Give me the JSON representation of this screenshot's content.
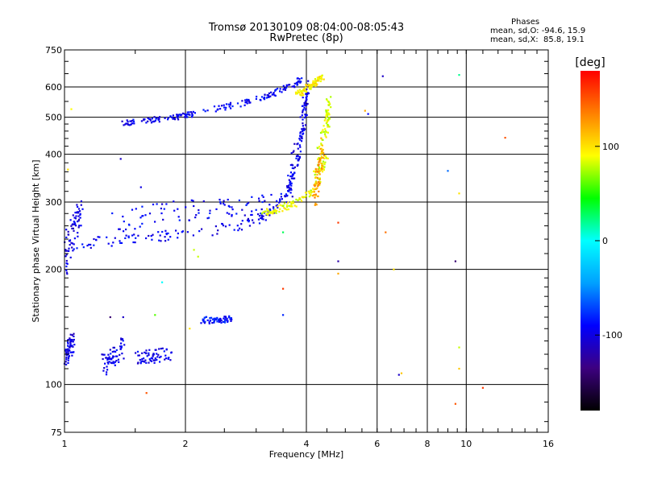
{
  "chart_data": {
    "type": "scatter",
    "title": "Tromsø 20130109 08:04:00-08:05:43",
    "subtitle": "RwPretec (8p)",
    "xlabel": "Frequency [MHz]",
    "ylabel": "Stationary phase Virtual Height [km]",
    "x_scale": "log",
    "y_scale": "log",
    "xlim": [
      1,
      16
    ],
    "ylim": [
      75,
      750
    ],
    "x_ticks": [
      1,
      2,
      4,
      6,
      8,
      10,
      16
    ],
    "y_ticks": [
      75,
      100,
      200,
      300,
      400,
      500,
      600,
      750
    ],
    "grid": true,
    "stats": {
      "heading": "Phases",
      "line_o": "mean, sd,O: -94.6, 15.9",
      "line_x": "mean, sd,X:  85.8, 19.1"
    },
    "colorbar": {
      "label": "[deg]",
      "range": [
        -180,
        180
      ],
      "ticks": [
        100,
        0,
        -100
      ],
      "colormap": [
        "#000000",
        "#3d0080",
        "#0000ff",
        "#00a0ff",
        "#00ffff",
        "#00ff00",
        "#ffff00",
        "#ff8000",
        "#ff0000"
      ]
    },
    "series": [
      {
        "description": "O-mode trace",
        "segments": [
          {
            "f": [
              1.0,
              1.2,
              1.5,
              2.0,
              2.5,
              3.0,
              3.3,
              3.6,
              3.8,
              3.95
            ],
            "h": [
              225,
              235,
              240,
              248,
              256,
              268,
              285,
              320,
              380,
              480
            ],
            "phase": -95,
            "jitter_h": 8
          },
          {
            "f": [
              1.0,
              1.05,
              1.1
            ],
            "h": [
              215,
              250,
              285
            ],
            "phase": -100,
            "jitter_h": 25
          },
          {
            "f": [
              1.3,
              1.8,
              2.6,
              3.3
            ],
            "h": [
              265,
              285,
              290,
              300
            ],
            "phase": -92,
            "jitter_h": 18
          },
          {
            "f": [
              1.35,
              1.6,
              1.9,
              2.1
            ],
            "h": [
              480,
              490,
              500,
              510
            ],
            "phase": -95,
            "jitter_h": 8
          },
          {
            "f": [
              2.2,
              2.8,
              3.2,
              3.6,
              3.9
            ],
            "h": [
              520,
              545,
              570,
              600,
              630
            ],
            "phase": -92,
            "jitter_h": 10
          },
          {
            "f": [
              3.6,
              3.7,
              3.85,
              3.95,
              4.05
            ],
            "h": [
              300,
              370,
              430,
              520,
              600
            ],
            "phase": -98,
            "jitter_h": 30
          },
          {
            "f": [
              1.0,
              1.05
            ],
            "h": [
              115,
              130
            ],
            "phase": -100,
            "jitter_h": 8
          },
          {
            "f": [
              1.25,
              1.4
            ],
            "h": [
              112,
              125
            ],
            "phase": -95,
            "jitter_h": 8
          },
          {
            "f": [
              1.5,
              1.85
            ],
            "h": [
              118,
              120
            ],
            "phase": -98,
            "jitter_h": 5
          },
          {
            "f": [
              2.2,
              2.6
            ],
            "h": [
              147,
              148
            ],
            "phase": -88,
            "jitter_h": 3
          }
        ]
      },
      {
        "description": "X-mode trace",
        "segments": [
          {
            "f": [
              3.1,
              3.4,
              3.7,
              4.0,
              4.3,
              4.5
            ],
            "h": [
              280,
              288,
              296,
              310,
              335,
              400
            ],
            "phase": 88,
            "jitter_h": 6
          },
          {
            "f": [
              4.2,
              4.35,
              4.5,
              4.55
            ],
            "h": [
              330,
              420,
              480,
              550
            ],
            "phase": 86,
            "jitter_h": 25
          },
          {
            "f": [
              4.2,
              4.4
            ],
            "h": [
              310,
              420
            ],
            "phase": 125,
            "jitter_h": 30
          },
          {
            "f": [
              3.8,
              4.0,
              4.2,
              4.4
            ],
            "h": [
              570,
              595,
              615,
              640
            ],
            "phase": 95,
            "jitter_h": 10
          }
        ]
      },
      {
        "description": "Scattered points",
        "points": [
          {
            "f": 1.04,
            "h": 525,
            "phase": 90
          },
          {
            "f": 1.02,
            "h": 365,
            "phase": 100
          },
          {
            "f": 6.2,
            "h": 640,
            "phase": -110
          },
          {
            "f": 9.6,
            "h": 645,
            "phase": 20
          },
          {
            "f": 5.6,
            "h": 520,
            "phase": 120
          },
          {
            "f": 5.7,
            "h": 510,
            "phase": -90
          },
          {
            "f": 9.0,
            "h": 362,
            "phase": -60
          },
          {
            "f": 9.6,
            "h": 316,
            "phase": 100
          },
          {
            "f": 12.5,
            "h": 442,
            "phase": 150
          },
          {
            "f": 6.3,
            "h": 250,
            "phase": 140
          },
          {
            "f": 4.8,
            "h": 265,
            "phase": 160
          },
          {
            "f": 4.8,
            "h": 210,
            "phase": -120
          },
          {
            "f": 3.5,
            "h": 250,
            "phase": 30
          },
          {
            "f": 3.5,
            "h": 178,
            "phase": 160
          },
          {
            "f": 9.4,
            "h": 210,
            "phase": -140
          },
          {
            "f": 6.6,
            "h": 200,
            "phase": 100
          },
          {
            "f": 4.8,
            "h": 195,
            "phase": 120
          },
          {
            "f": 3.5,
            "h": 152,
            "phase": -80
          },
          {
            "f": 1.75,
            "h": 185,
            "phase": 0
          },
          {
            "f": 1.68,
            "h": 152,
            "phase": 60
          },
          {
            "f": 2.05,
            "h": 140,
            "phase": 100
          },
          {
            "f": 9.6,
            "h": 125,
            "phase": 80
          },
          {
            "f": 9.6,
            "h": 110,
            "phase": 110
          },
          {
            "f": 6.8,
            "h": 106,
            "phase": -110
          },
          {
            "f": 6.9,
            "h": 107,
            "phase": 110
          },
          {
            "f": 1.6,
            "h": 95,
            "phase": 150
          },
          {
            "f": 9.4,
            "h": 89,
            "phase": 150
          },
          {
            "f": 11.0,
            "h": 98,
            "phase": 160
          },
          {
            "f": 2.1,
            "h": 225,
            "phase": 80
          },
          {
            "f": 2.15,
            "h": 216,
            "phase": 80
          },
          {
            "f": 1.38,
            "h": 389,
            "phase": -110
          },
          {
            "f": 1.55,
            "h": 328,
            "phase": -100
          },
          {
            "f": 1.3,
            "h": 150,
            "phase": -140
          },
          {
            "f": 1.4,
            "h": 150,
            "phase": -110
          }
        ]
      }
    ]
  }
}
